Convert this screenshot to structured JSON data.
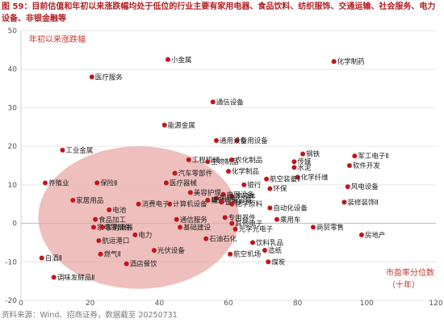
{
  "figure": {
    "title": "图 59：目前估值和年初以来涨跌幅均处于低位的行业主要有家用电器、食品饮料、纺织服饰、交通运输、社会服务、电力设备、非银金融等",
    "source": "资料来源：Wind、招商证券，数据截至 20250731"
  },
  "colors": {
    "title": "#b01e23",
    "point": "#c0161d",
    "ellipse": "#e8a9a6",
    "axis_note": "#c0392b"
  },
  "chart_data": {
    "type": "scatter",
    "ylabel": "年初以来涨跌幅",
    "xlabel_line1": "市盈率分位数",
    "xlabel_line2": "（十年）",
    "xlim": [
      0,
      120
    ],
    "ylim": [
      -20,
      50
    ],
    "xticks": [
      "0",
      "20",
      "40",
      "60",
      "80",
      "100",
      "120"
    ],
    "yticks": [
      "-20",
      "-10",
      "0",
      "10",
      "20",
      "30",
      "40",
      "50"
    ],
    "points": [
      {
        "label": "化学制药",
        "x": 90.5,
        "y": 42
      },
      {
        "label": "小金属",
        "x": 42.5,
        "y": 42.5
      },
      {
        "label": "医疗服务",
        "x": 20.5,
        "y": 38
      },
      {
        "label": "通信设备",
        "x": 55.5,
        "y": 31.5
      },
      {
        "label": "能源金属",
        "x": 41.5,
        "y": 25.5
      },
      {
        "label": "专用设备",
        "x": 62.5,
        "y": 21.5
      },
      {
        "label": "通用设备",
        "x": 56.5,
        "y": 21.5
      },
      {
        "label": "工业金属",
        "x": 12,
        "y": 19
      },
      {
        "label": "军工电子Ⅱ",
        "x": 96.5,
        "y": 17.5
      },
      {
        "label": "钢铁",
        "x": 81.5,
        "y": 18
      },
      {
        "label": "传媒",
        "x": 79,
        "y": 16
      },
      {
        "label": "水泥",
        "x": 79,
        "y": 14.5
      },
      {
        "label": "软件开发",
        "x": 95,
        "y": 15
      },
      {
        "label": "工程机械",
        "x": 48.5,
        "y": 16.5
      },
      {
        "label": "生物制品",
        "x": 54,
        "y": 16
      },
      {
        "label": "农化制品",
        "x": 61,
        "y": 16.5
      },
      {
        "label": "化学制品",
        "x": 60,
        "y": 13.5
      },
      {
        "label": "化学纤维",
        "x": 80,
        "y": 12
      },
      {
        "label": "航空装备Ⅱ",
        "x": 71,
        "y": 11.5
      },
      {
        "label": "汽车零部件",
        "x": 44.5,
        "y": 13
      },
      {
        "label": "医疗器械",
        "x": 42,
        "y": 10.5
      },
      {
        "label": "美容护理",
        "x": 49,
        "y": 8
      },
      {
        "label": "银行",
        "x": 64.5,
        "y": 10
      },
      {
        "label": "环保",
        "x": 72,
        "y": 9
      },
      {
        "label": "风电设备",
        "x": 94.5,
        "y": 9.5
      },
      {
        "label": "养殖业",
        "x": 7,
        "y": 10.5
      },
      {
        "label": "保险Ⅱ",
        "x": 22,
        "y": 10.5
      },
      {
        "label": "半导体",
        "x": 61,
        "y": 7
      },
      {
        "label": "电网设备",
        "x": 58.5,
        "y": 7.5
      },
      {
        "label": "饲料",
        "x": 56.5,
        "y": 6.5
      },
      {
        "label": "其他电源设备",
        "x": 54,
        "y": 6
      },
      {
        "label": "电池",
        "x": 54,
        "y": 6
      },
      {
        "label": "证券Ⅱ",
        "x": 58,
        "y": 5.5
      },
      {
        "label": "化学原料",
        "x": 61,
        "y": 5
      },
      {
        "label": "家居用品",
        "x": 15,
        "y": 6
      },
      {
        "label": "电池",
        "x": 25.5,
        "y": 3.5
      },
      {
        "label": "消费电子",
        "x": 34,
        "y": 5
      },
      {
        "label": "计算机设备",
        "x": 43,
        "y": 5
      },
      {
        "label": "装修装饰Ⅱ",
        "x": 93.5,
        "y": 5.5
      },
      {
        "label": "自动化设备",
        "x": 72,
        "y": 4
      },
      {
        "label": "食品加工",
        "x": 21.5,
        "y": 1
      },
      {
        "label": "通信服务",
        "x": 45,
        "y": 1
      },
      {
        "label": "专用器件",
        "x": 59,
        "y": 1.5
      },
      {
        "label": "乘用车",
        "x": 74,
        "y": 1
      },
      {
        "label": "家电零部件",
        "x": 21,
        "y": -1
      },
      {
        "label": "家用电器",
        "x": 23.5,
        "y": -1
      },
      {
        "label": "基础建设",
        "x": 46,
        "y": -1
      },
      {
        "label": "其他电子",
        "x": 61,
        "y": 0
      },
      {
        "label": "光学光电子",
        "x": 62,
        "y": -1.5
      },
      {
        "label": "商贸零售",
        "x": 84.5,
        "y": -1
      },
      {
        "label": "电力",
        "x": 33,
        "y": -3
      },
      {
        "label": "石油石化",
        "x": 53.5,
        "y": -4
      },
      {
        "label": "航运港口",
        "x": 22.5,
        "y": -4.5
      },
      {
        "label": "饮料乳品",
        "x": 67,
        "y": -5
      },
      {
        "label": "光伏设备",
        "x": 38.5,
        "y": -7
      },
      {
        "label": "房地产",
        "x": 98.5,
        "y": -3
      },
      {
        "label": "造纸",
        "x": 70.5,
        "y": -7
      },
      {
        "label": "燃气Ⅱ",
        "x": 23,
        "y": -8
      },
      {
        "label": "航空机场",
        "x": 60.5,
        "y": -8
      },
      {
        "label": "白酒Ⅱ",
        "x": 6,
        "y": -9
      },
      {
        "label": "酒店餐饮",
        "x": 30.5,
        "y": -10.5
      },
      {
        "label": "煤炭",
        "x": 71.5,
        "y": -10
      },
      {
        "label": "调味发酵品Ⅱ",
        "x": 9.5,
        "y": -14
      }
    ],
    "highlight": {
      "shape": "ellipse",
      "cx": 34,
      "cy": 1.5,
      "rx": 29,
      "ry": 18.5
    }
  }
}
